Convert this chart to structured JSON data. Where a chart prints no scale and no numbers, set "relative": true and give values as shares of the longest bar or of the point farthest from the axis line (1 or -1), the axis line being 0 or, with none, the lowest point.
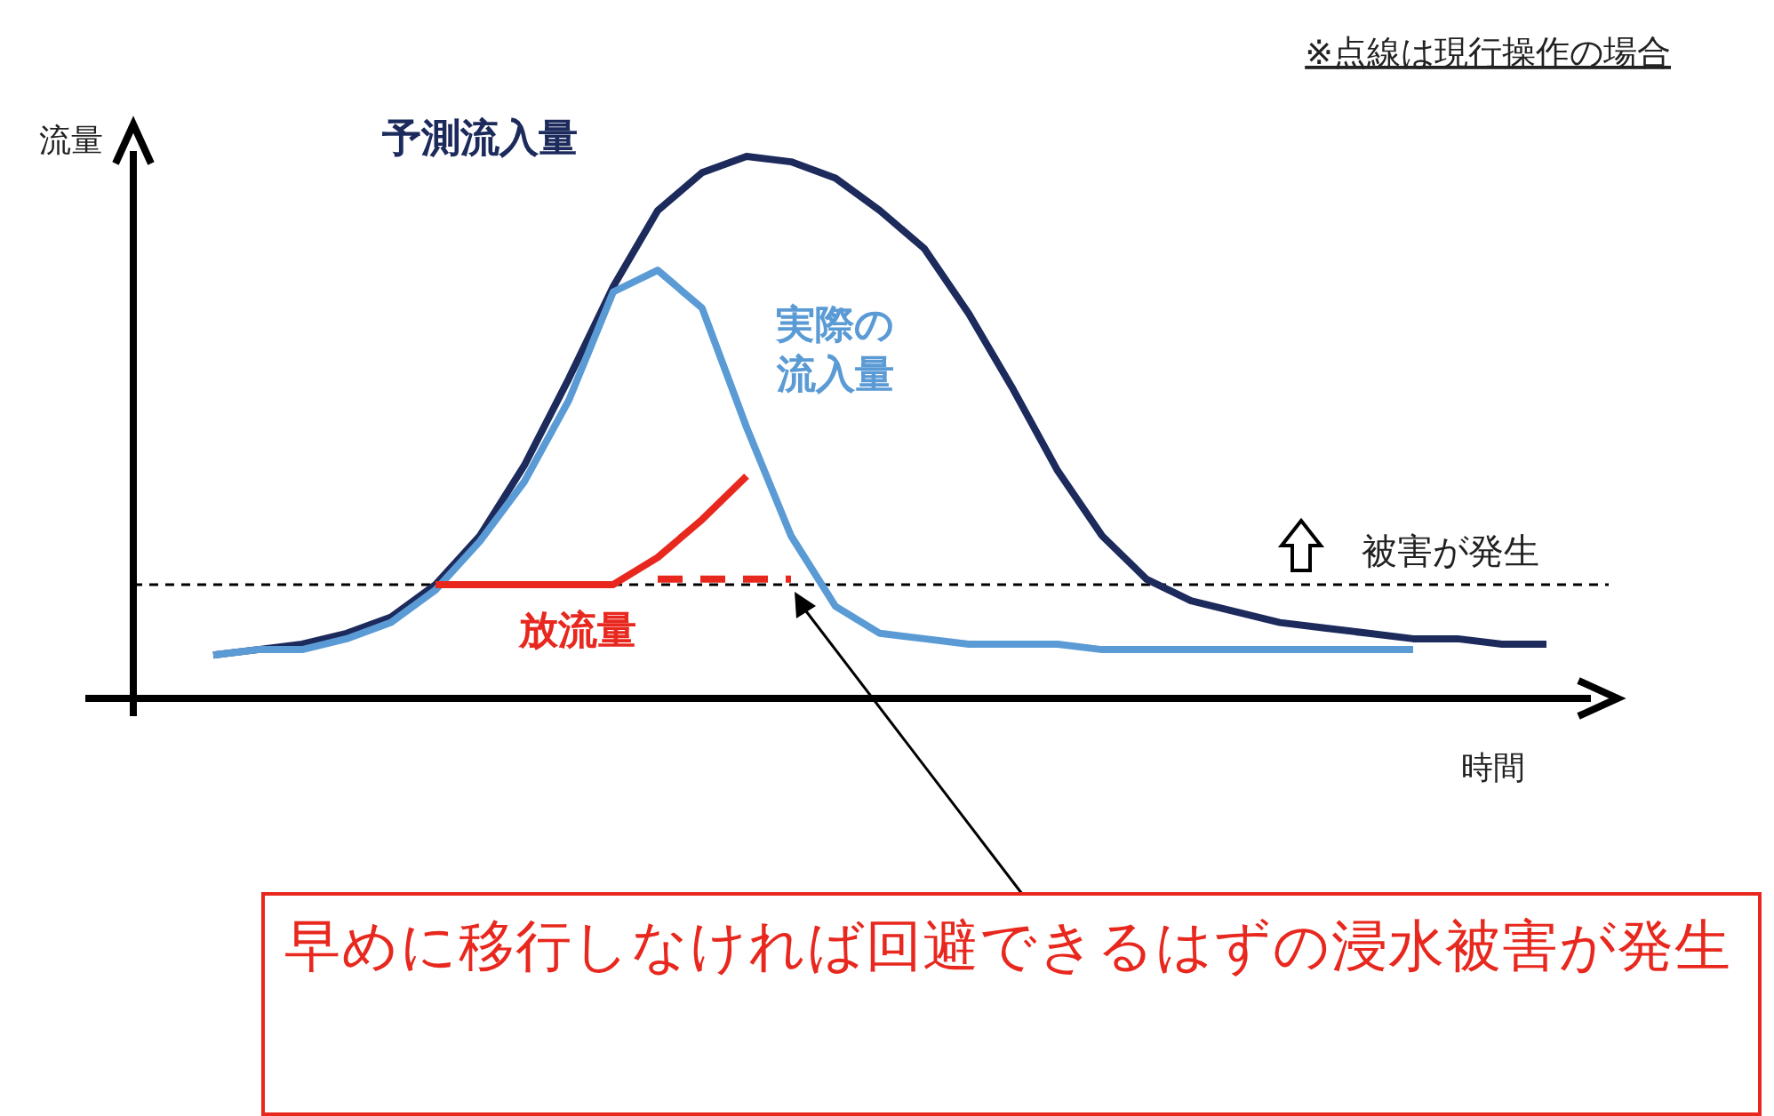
{
  "chart_data": {
    "type": "line",
    "relative": true,
    "xlabel": "時間",
    "ylabel": "流量",
    "categories": [
      null,
      null,
      null,
      null,
      null,
      null,
      null,
      null,
      null,
      null,
      null,
      null,
      null,
      null,
      null,
      null,
      null,
      null,
      null,
      null,
      null,
      null,
      null,
      null,
      null,
      null,
      null,
      null,
      null,
      null,
      null
    ],
    "series": [
      {
        "name": "予測流入量",
        "color": "#1c2a5c",
        "values": [
          0.08,
          0.09,
          0.1,
          0.12,
          0.15,
          0.21,
          0.3,
          0.43,
          0.59,
          0.76,
          0.9,
          0.97,
          1.0,
          0.99,
          0.96,
          0.9,
          0.83,
          0.71,
          0.57,
          0.42,
          0.3,
          0.22,
          0.18,
          0.16,
          0.14,
          0.13,
          0.12,
          0.11,
          0.11,
          0.1,
          0.1
        ]
      },
      {
        "name": "実際の流入量",
        "color": "#5b9bd5",
        "values": [
          0.08,
          0.09,
          0.09,
          0.11,
          0.14,
          0.2,
          0.29,
          0.4,
          0.55,
          0.75,
          0.79,
          0.72,
          0.5,
          0.3,
          0.17,
          0.12,
          0.11,
          0.1,
          0.1,
          0.1,
          0.09,
          0.09,
          0.09,
          0.09,
          0.09,
          0.09,
          0.09,
          0.09,
          null,
          null,
          null
        ]
      },
      {
        "name": "放流量",
        "color": "#e8281e",
        "values": [
          null,
          null,
          null,
          null,
          null,
          0.21,
          0.21,
          0.21,
          0.21,
          0.21,
          0.26,
          0.33,
          0.41,
          null,
          null,
          null,
          null,
          null,
          null,
          null,
          null,
          null,
          null,
          null,
          null,
          null,
          null,
          null,
          null,
          null,
          null
        ]
      },
      {
        "color": "#e8281e",
        "line_style": "dashed",
        "values": [
          null,
          null,
          null,
          null,
          null,
          null,
          null,
          null,
          null,
          null,
          0.22,
          0.22,
          0.22,
          0.22,
          null,
          null,
          null,
          null,
          null,
          null,
          null,
          null,
          null,
          null,
          null,
          null,
          null,
          null,
          null,
          null,
          null
        ]
      }
    ],
    "ref_lines": [
      {
        "axis": "y",
        "value": 0.21,
        "label": "被害が発生",
        "color": "#000000",
        "line_style": "dashed"
      }
    ],
    "annotations": [
      "※点線は現行操作の場合",
      "早めに移行しなければ回避できるはずの浸水被害が発生"
    ]
  }
}
